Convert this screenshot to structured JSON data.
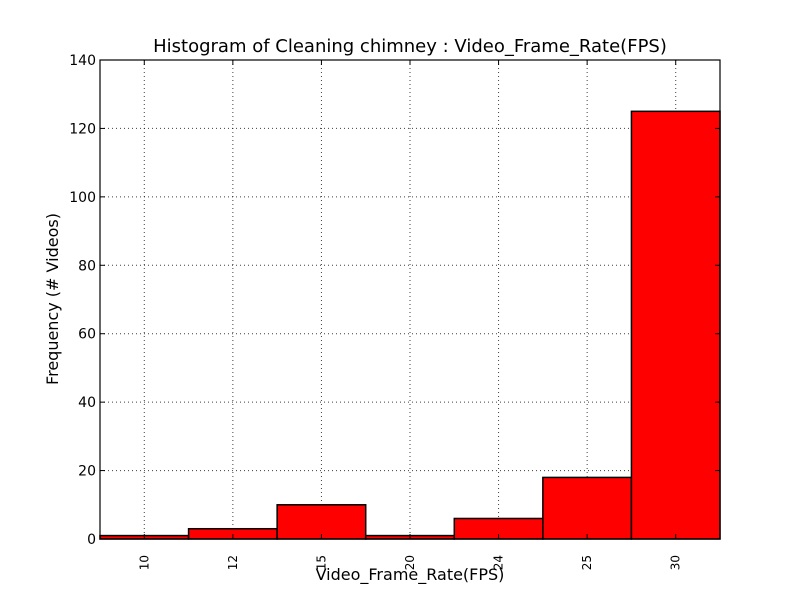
{
  "chart_data": {
    "type": "bar",
    "title": "Histogram of Cleaning chimney : Video_Frame_Rate(FPS)",
    "xlabel": "Video_Frame_Rate(FPS)",
    "ylabel": "Frequency (# Videos)",
    "categories": [
      "10",
      "12",
      "15",
      "20",
      "24",
      "25",
      "30"
    ],
    "values": [
      1,
      3,
      10,
      1,
      6,
      18,
      125
    ],
    "ylim": [
      0,
      140
    ],
    "yticks": [
      0,
      20,
      40,
      60,
      80,
      100,
      120,
      140
    ],
    "grid": true,
    "colors": {
      "bar_fill": "#ff0000",
      "bar_edge": "#000000"
    }
  }
}
